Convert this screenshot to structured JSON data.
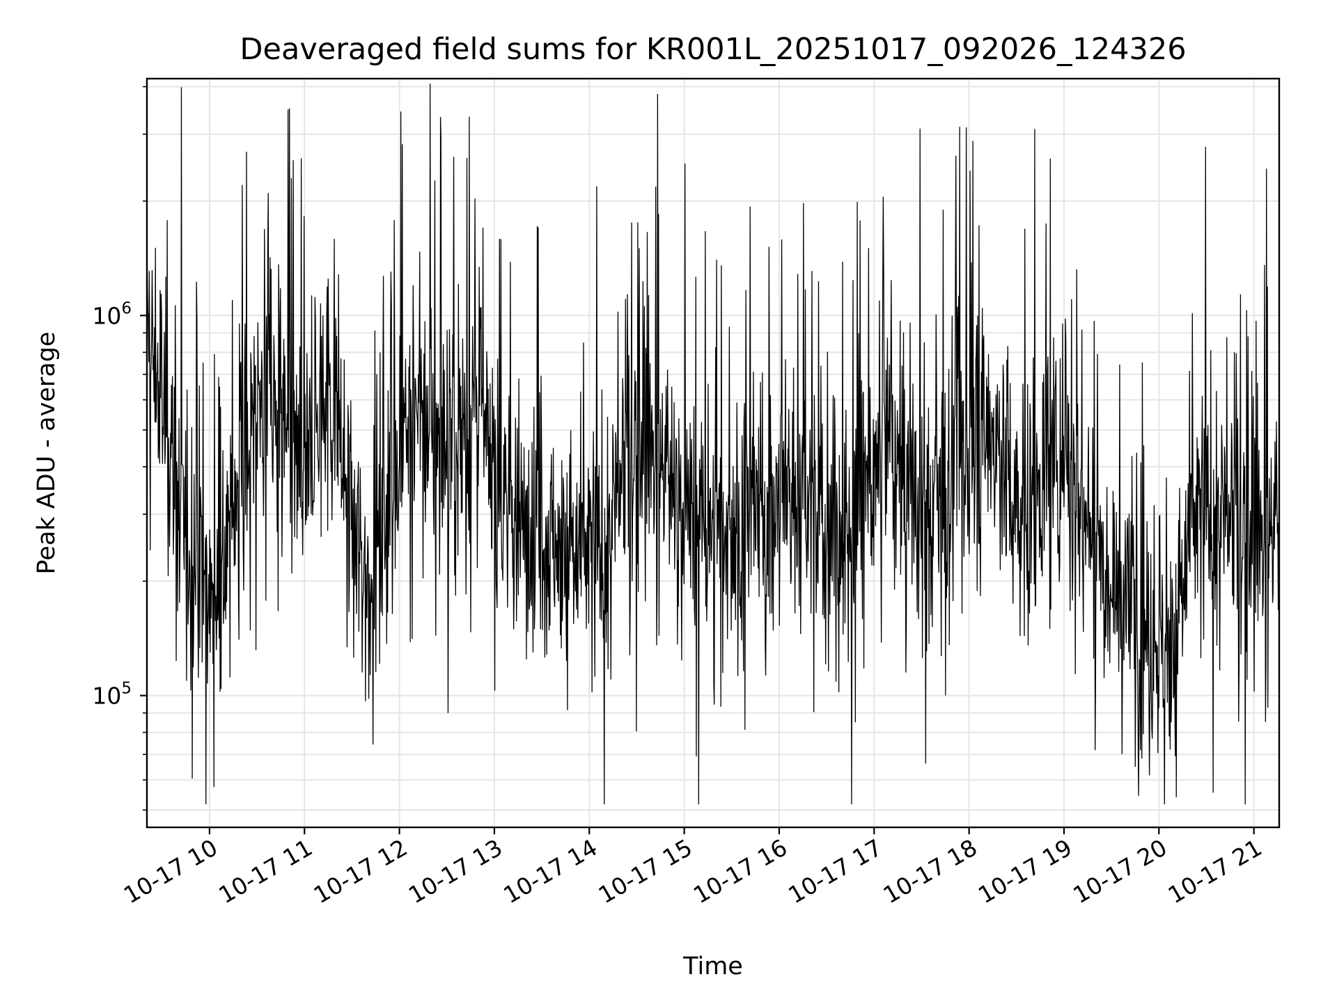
{
  "chart_data": {
    "type": "line",
    "title": "Deaveraged field sums for KR001L_20251017_092026_124326",
    "xlabel": "Time",
    "ylabel": "Peak ADU - average",
    "yscale": "log",
    "ylim": [
      45000,
      4200000
    ],
    "xlim": [
      "2025-10-17 09:20:26",
      "2025-10-17 21:16:00"
    ],
    "x_ticks": [
      "10-17 10",
      "10-17 11",
      "10-17 12",
      "10-17 13",
      "10-17 14",
      "10-17 15",
      "10-17 16",
      "10-17 17",
      "10-17 18",
      "10-17 19",
      "10-17 20",
      "10-17 21"
    ],
    "y_ticks": [
      {
        "value": 100000,
        "base": "10",
        "exp": "5"
      },
      {
        "value": 1000000,
        "base": "10",
        "exp": "6"
      }
    ],
    "grid": true,
    "series": [
      {
        "color": "#000000",
        "x": [
          "2025-10-17 09:20",
          "2025-10-17 09:30",
          "2025-10-17 09:40",
          "2025-10-17 09:50",
          "2025-10-17 10:00",
          "2025-10-17 10:10",
          "2025-10-17 10:20",
          "2025-10-17 10:30",
          "2025-10-17 10:40",
          "2025-10-17 10:50",
          "2025-10-17 11:00",
          "2025-10-17 11:10",
          "2025-10-17 11:20",
          "2025-10-17 11:30",
          "2025-10-17 11:40",
          "2025-10-17 11:50",
          "2025-10-17 12:00",
          "2025-10-17 12:10",
          "2025-10-17 12:20",
          "2025-10-17 12:30",
          "2025-10-17 12:40",
          "2025-10-17 12:50",
          "2025-10-17 13:00",
          "2025-10-17 13:10",
          "2025-10-17 13:20",
          "2025-10-17 13:30",
          "2025-10-17 13:40",
          "2025-10-17 13:50",
          "2025-10-17 14:00",
          "2025-10-17 14:10",
          "2025-10-17 14:20",
          "2025-10-17 14:30",
          "2025-10-17 14:40",
          "2025-10-17 14:50",
          "2025-10-17 15:00",
          "2025-10-17 15:10",
          "2025-10-17 15:20",
          "2025-10-17 15:30",
          "2025-10-17 15:40",
          "2025-10-17 15:50",
          "2025-10-17 16:00",
          "2025-10-17 16:10",
          "2025-10-17 16:20",
          "2025-10-17 16:30",
          "2025-10-17 16:40",
          "2025-10-17 16:50",
          "2025-10-17 17:00",
          "2025-10-17 17:10",
          "2025-10-17 17:20",
          "2025-10-17 17:30",
          "2025-10-17 17:40",
          "2025-10-17 17:50",
          "2025-10-17 18:00",
          "2025-10-17 18:10",
          "2025-10-17 18:20",
          "2025-10-17 18:30",
          "2025-10-17 18:40",
          "2025-10-17 18:50",
          "2025-10-17 19:00",
          "2025-10-17 19:10",
          "2025-10-17 19:20",
          "2025-10-17 19:30",
          "2025-10-17 19:40",
          "2025-10-17 19:50",
          "2025-10-17 20:00",
          "2025-10-17 20:10",
          "2025-10-17 20:20",
          "2025-10-17 20:30",
          "2025-10-17 20:40",
          "2025-10-17 20:50",
          "2025-10-17 21:00",
          "2025-10-17 21:10",
          "2025-10-17 21:16"
        ],
        "y": [
          900000,
          600000,
          300000,
          250000,
          180000,
          220000,
          450000,
          600000,
          550000,
          450000,
          350000,
          600000,
          600000,
          250000,
          200000,
          300000,
          500000,
          550000,
          500000,
          450000,
          500000,
          600000,
          350000,
          300000,
          300000,
          280000,
          250000,
          230000,
          240000,
          230000,
          350000,
          450000,
          450000,
          400000,
          300000,
          280000,
          260000,
          280000,
          280000,
          300000,
          330000,
          350000,
          300000,
          250000,
          250000,
          330000,
          400000,
          450000,
          350000,
          300000,
          320000,
          400000,
          450000,
          500000,
          450000,
          300000,
          300000,
          400000,
          450000,
          350000,
          250000,
          220000,
          180000,
          150000,
          140000,
          130000,
          280000,
          300000,
          280000,
          270000,
          260000,
          280000,
          300000
        ]
      }
    ]
  }
}
